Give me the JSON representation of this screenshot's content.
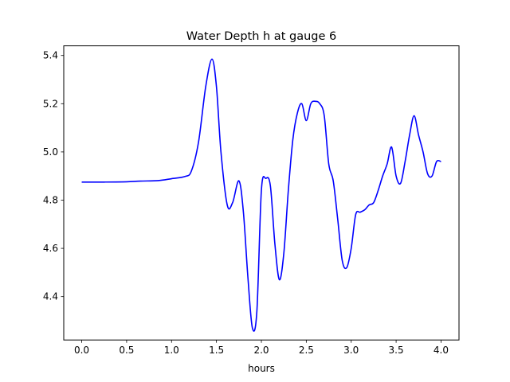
{
  "chart_data": {
    "type": "line",
    "title": "Water Depth h at gauge 6",
    "xlabel": "hours",
    "ylabel": "",
    "xlim": [
      -0.2,
      4.2
    ],
    "ylim": [
      4.22,
      5.44
    ],
    "xticks": [
      0.0,
      0.5,
      1.0,
      1.5,
      2.0,
      2.5,
      3.0,
      3.5,
      4.0
    ],
    "xtick_labels": [
      "0.0",
      "0.5",
      "1.0",
      "1.5",
      "2.0",
      "2.5",
      "3.0",
      "3.5",
      "4.0"
    ],
    "yticks": [
      4.4,
      4.6,
      4.8,
      5.0,
      5.2,
      5.4
    ],
    "ytick_labels": [
      "4.4",
      "4.6",
      "4.8",
      "5.0",
      "5.2",
      "5.4"
    ],
    "grid": false,
    "series": [
      {
        "color": "#0000ff",
        "x": [
          0.0,
          0.25,
          0.5,
          0.65,
          0.85,
          1.0,
          1.15,
          1.22,
          1.3,
          1.38,
          1.45,
          1.5,
          1.55,
          1.62,
          1.68,
          1.75,
          1.8,
          1.85,
          1.9,
          1.95,
          2.0,
          2.05,
          2.1,
          2.15,
          2.2,
          2.25,
          2.3,
          2.35,
          2.4,
          2.45,
          2.5,
          2.55,
          2.6,
          2.65,
          2.7,
          2.75,
          2.8,
          2.85,
          2.9,
          2.95,
          3.0,
          3.05,
          3.1,
          3.15,
          3.2,
          3.25,
          3.3,
          3.35,
          3.4,
          3.45,
          3.5,
          3.55,
          3.6,
          3.65,
          3.7,
          3.75,
          3.8,
          3.85,
          3.9,
          3.95,
          4.0
        ],
        "y": [
          4.875,
          4.875,
          4.876,
          4.879,
          4.881,
          4.889,
          4.898,
          4.92,
          5.04,
          5.27,
          5.385,
          5.27,
          5.0,
          4.78,
          4.79,
          4.88,
          4.75,
          4.48,
          4.27,
          4.34,
          4.84,
          4.89,
          4.86,
          4.62,
          4.47,
          4.58,
          4.84,
          5.05,
          5.16,
          5.2,
          5.13,
          5.2,
          5.21,
          5.2,
          5.15,
          4.95,
          4.88,
          4.72,
          4.55,
          4.52,
          4.6,
          4.74,
          4.75,
          4.76,
          4.78,
          4.79,
          4.84,
          4.9,
          4.95,
          5.02,
          4.9,
          4.87,
          4.96,
          5.07,
          5.15,
          5.07,
          5.0,
          4.91,
          4.9,
          4.96,
          4.96
        ]
      }
    ]
  }
}
